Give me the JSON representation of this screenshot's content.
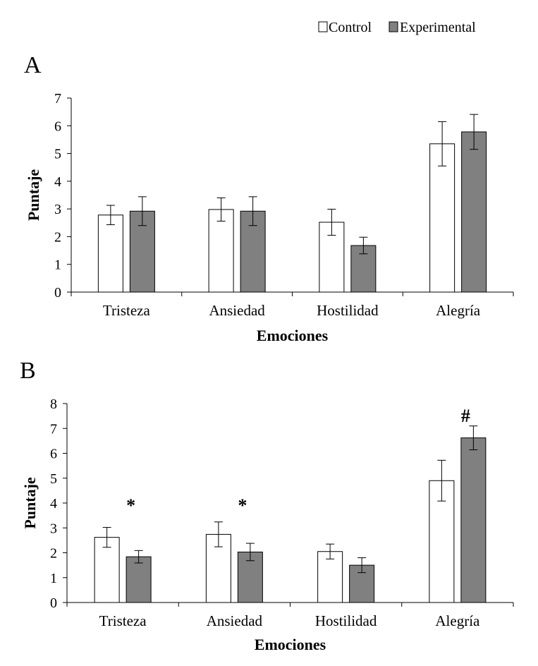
{
  "legend": {
    "items": [
      {
        "label": "Control",
        "color": "#ffffff"
      },
      {
        "label": "Experimental",
        "color": "#808080"
      }
    ]
  },
  "chart_data": [
    {
      "panel": "A",
      "type": "bar",
      "categories": [
        "Tristeza",
        "Ansiedad",
        "Hostilidad",
        "Alegría"
      ],
      "series": [
        {
          "name": "Control",
          "color": "#ffffff",
          "values": [
            2.78,
            2.98,
            2.52,
            5.35
          ],
          "errors": [
            0.35,
            0.42,
            0.47,
            0.8
          ]
        },
        {
          "name": "Experimental",
          "color": "#808080",
          "values": [
            2.92,
            2.92,
            1.68,
            5.78
          ],
          "errors": [
            0.52,
            0.52,
            0.3,
            0.63
          ]
        }
      ],
      "xlabel": "Emociones",
      "ylabel": "Puntaje",
      "ylim": [
        0,
        7
      ],
      "yticks": [
        0,
        1,
        2,
        3,
        4,
        5,
        6,
        7
      ],
      "annotations": []
    },
    {
      "panel": "B",
      "type": "bar",
      "categories": [
        "Tristeza",
        "Ansiedad",
        "Hostilidad",
        "Alegría"
      ],
      "series": [
        {
          "name": "Control",
          "color": "#ffffff",
          "values": [
            2.62,
            2.74,
            2.05,
            4.9
          ],
          "errors": [
            0.4,
            0.5,
            0.3,
            0.82
          ]
        },
        {
          "name": "Experimental",
          "color": "#808080",
          "values": [
            1.84,
            2.03,
            1.5,
            6.62
          ],
          "errors": [
            0.25,
            0.35,
            0.3,
            0.48
          ]
        }
      ],
      "xlabel": "Emociones",
      "ylabel": "Puntaje",
      "ylim": [
        0,
        8
      ],
      "yticks": [
        0,
        1,
        2,
        3,
        4,
        5,
        6,
        7,
        8
      ],
      "annotations": [
        {
          "category": 0,
          "text": "*",
          "y": 4.0
        },
        {
          "category": 1,
          "text": "*",
          "y": 4.0
        },
        {
          "category": 3,
          "text": "#",
          "y": 7.6
        }
      ]
    }
  ]
}
